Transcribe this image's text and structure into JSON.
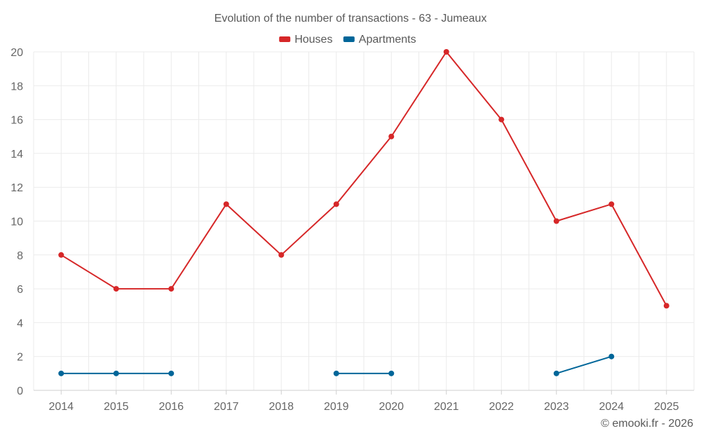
{
  "chart_data": {
    "type": "line",
    "title": "Evolution of the number of transactions - 63 - Jumeaux",
    "categories": [
      "2014",
      "2015",
      "2016",
      "2017",
      "2018",
      "2019",
      "2020",
      "2021",
      "2022",
      "2023",
      "2024",
      "2025"
    ],
    "series": [
      {
        "name": "Houses",
        "color": "#d62728",
        "values": [
          8,
          6,
          6,
          11,
          8,
          11,
          15,
          20,
          16,
          10,
          11,
          5
        ]
      },
      {
        "name": "Apartments",
        "color": "#006699",
        "values": [
          1,
          1,
          1,
          null,
          null,
          1,
          1,
          null,
          null,
          1,
          2,
          null
        ]
      }
    ],
    "ylim": [
      0,
      20
    ],
    "yticks": [
      0,
      2,
      4,
      6,
      8,
      10,
      12,
      14,
      16,
      18,
      20
    ],
    "xlabel": "",
    "ylabel": "",
    "grid": true,
    "legend_position": "top-center",
    "credit": "© emooki.fr - 2026"
  }
}
